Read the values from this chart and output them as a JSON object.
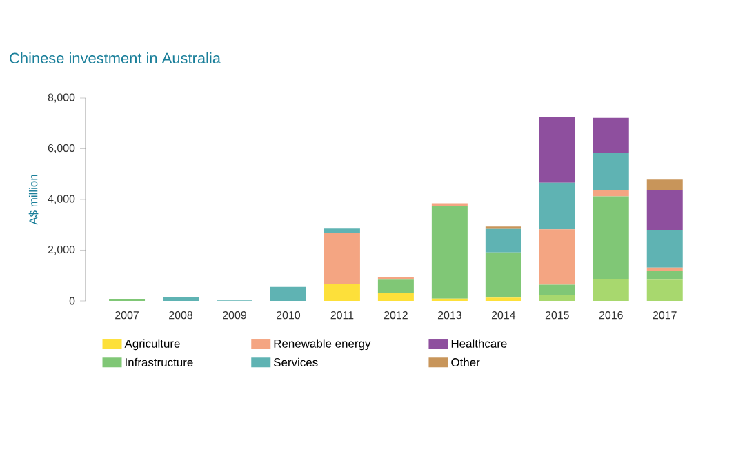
{
  "chart_data": {
    "type": "bar",
    "stacked": true,
    "title": "Chinese investment in Australia",
    "ylabel": "A$ million",
    "categories": [
      "2007",
      "2008",
      "2009",
      "2010",
      "2011",
      "2012",
      "2013",
      "2014",
      "2015",
      "2016",
      "2017"
    ],
    "ylim": [
      0,
      8000
    ],
    "yticks": [
      {
        "value": 0,
        "label": "0"
      },
      {
        "value": 2000,
        "label": "2,000"
      },
      {
        "value": 4000,
        "label": "4,000"
      },
      {
        "value": 6000,
        "label": "6,000"
      },
      {
        "value": 8000,
        "label": "8,000"
      }
    ],
    "legend": "bottom",
    "series": [
      {
        "name": "Agriculture",
        "color": "#fde03a",
        "values": [
          null,
          null,
          null,
          null,
          670,
          310,
          90,
          130,
          null,
          null,
          null
        ]
      },
      {
        "color": "#a8d86e",
        "values": [
          null,
          null,
          null,
          null,
          null,
          null,
          null,
          null,
          240,
          870,
          840
        ]
      },
      {
        "name": "Infrastructure",
        "color": "#80c776",
        "values": [
          80,
          null,
          null,
          null,
          null,
          530,
          3650,
          1780,
          400,
          3250,
          360
        ]
      },
      {
        "name": "Renewable energy",
        "color": "#f4a582",
        "values": [
          null,
          null,
          null,
          null,
          2020,
          90,
          110,
          null,
          2180,
          250,
          110
        ]
      },
      {
        "name": "Services",
        "color": "#5fb3b3",
        "values": [
          null,
          150,
          20,
          550,
          160,
          null,
          null,
          930,
          1840,
          1470,
          1470
        ]
      },
      {
        "name": "Healthcare",
        "color": "#8e4f9e",
        "values": [
          null,
          null,
          null,
          null,
          null,
          null,
          null,
          null,
          2580,
          1380,
          1580
        ]
      },
      {
        "name": "Other",
        "color": "#c8955a",
        "values": [
          null,
          null,
          null,
          null,
          null,
          null,
          null,
          90,
          null,
          null,
          420
        ]
      }
    ]
  }
}
